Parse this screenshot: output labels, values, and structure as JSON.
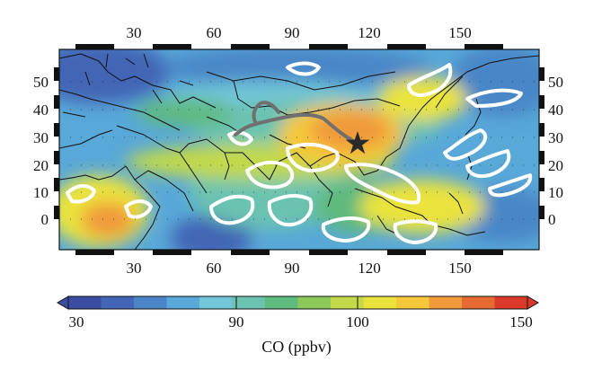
{
  "map": {
    "top_x_ticks": [
      "30",
      "60",
      "90",
      "120",
      "150"
    ],
    "bottom_x_ticks": [
      "30",
      "60",
      "90",
      "120",
      "150"
    ],
    "left_y_ticks": [
      "50",
      "40",
      "30",
      "20",
      "10",
      "0"
    ],
    "right_y_ticks": [
      "50",
      "40",
      "30",
      "20",
      "10",
      "0"
    ],
    "marker": "star-icon",
    "overlay_colors": {
      "contour": "#ffffff",
      "trajectory": "#707070",
      "coastline": "#111111"
    }
  },
  "colorbar": {
    "tick_labels": [
      "30",
      "90",
      "100",
      "150"
    ],
    "title": "CO (ppbv)",
    "colors": [
      "#3b4da1",
      "#4365b5",
      "#4a86c7",
      "#58a8d8",
      "#72c6d9",
      "#6bc3b0",
      "#5fba7d",
      "#8cc95a",
      "#c3d94a",
      "#eae33e",
      "#f5c83a",
      "#f09a3a",
      "#e86a33",
      "#d93a2c"
    ]
  }
}
